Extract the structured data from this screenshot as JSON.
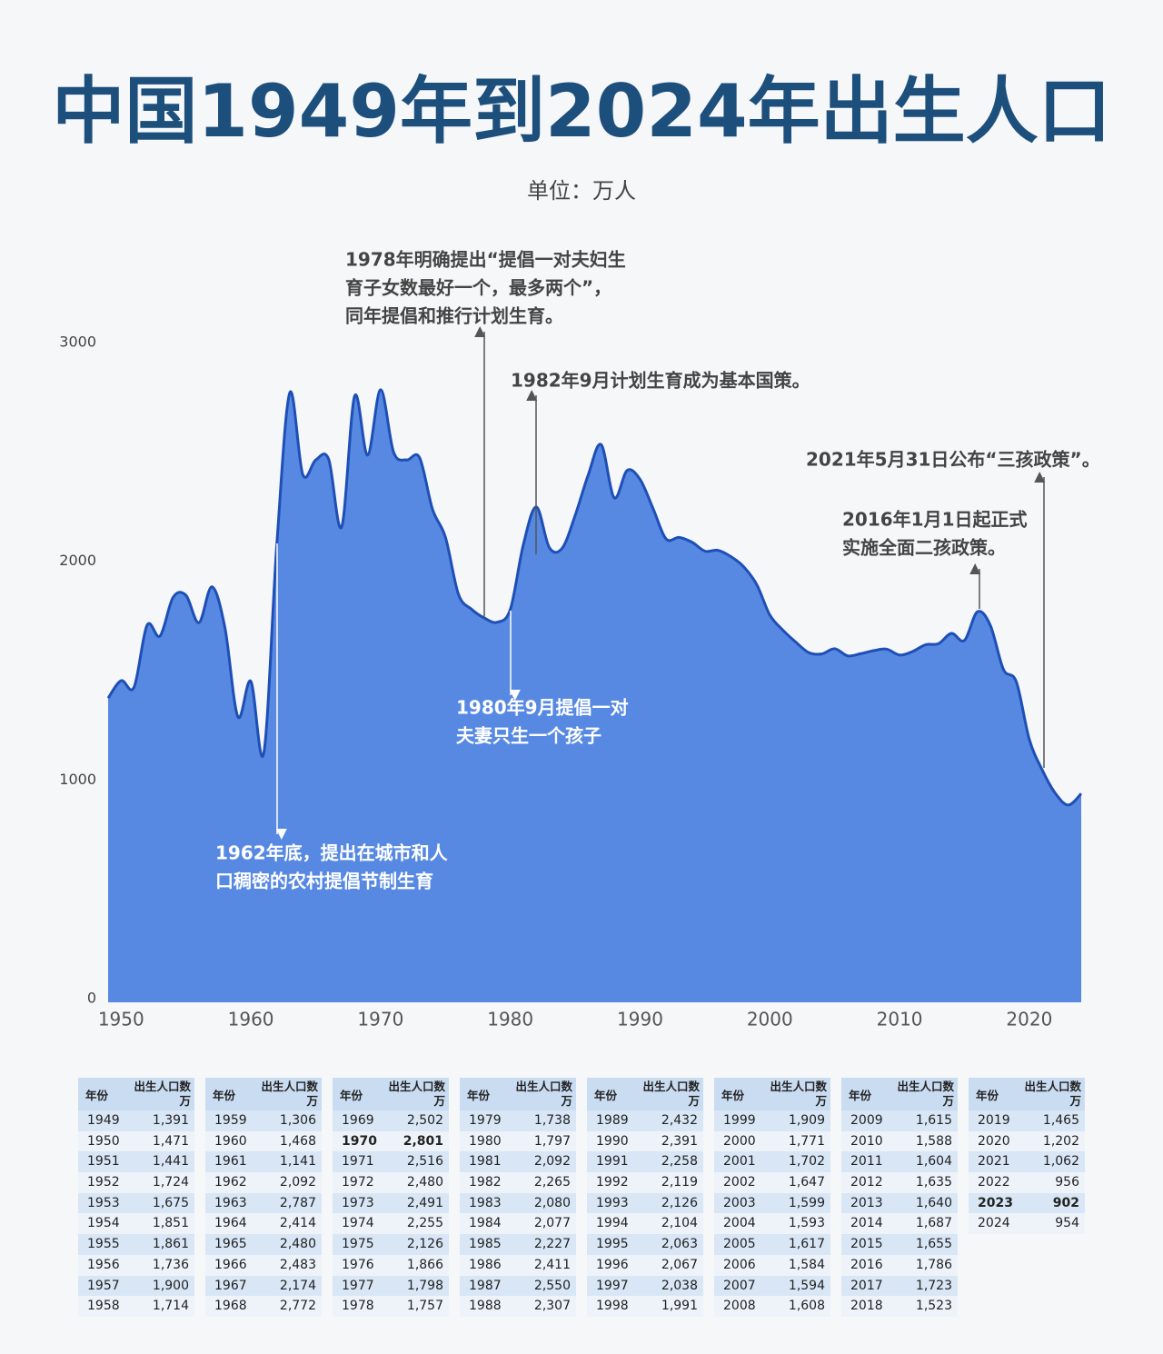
{
  "chart_data": {
    "type": "area",
    "title": "中国1949年到2024年出生人口",
    "subtitle": "单位：万人",
    "x": [
      1949,
      1950,
      1951,
      1952,
      1953,
      1954,
      1955,
      1956,
      1957,
      1958,
      1959,
      1960,
      1961,
      1962,
      1963,
      1964,
      1965,
      1966,
      1967,
      1968,
      1969,
      1970,
      1971,
      1972,
      1973,
      1974,
      1975,
      1976,
      1977,
      1978,
      1979,
      1980,
      1981,
      1982,
      1983,
      1984,
      1985,
      1986,
      1987,
      1988,
      1989,
      1990,
      1991,
      1992,
      1993,
      1994,
      1995,
      1996,
      1997,
      1998,
      1999,
      2000,
      2001,
      2002,
      2003,
      2004,
      2005,
      2006,
      2007,
      2008,
      2009,
      2010,
      2011,
      2012,
      2013,
      2014,
      2015,
      2016,
      2017,
      2018,
      2019,
      2020,
      2021,
      2022,
      2023,
      2024
    ],
    "values": [
      1391,
      1471,
      1441,
      1724,
      1675,
      1851,
      1861,
      1736,
      1900,
      1714,
      1306,
      1468,
      1141,
      2092,
      2787,
      2414,
      2480,
      2483,
      2174,
      2772,
      2502,
      2801,
      2516,
      2480,
      2491,
      2255,
      2126,
      1866,
      1798,
      1757,
      1738,
      1797,
      2092,
      2265,
      2080,
      2077,
      2227,
      2411,
      2550,
      2307,
      2432,
      2391,
      2258,
      2119,
      2126,
      2104,
      2063,
      2067,
      2038,
      1991,
      1909,
      1771,
      1702,
      1647,
      1599,
      1593,
      1617,
      1584,
      1594,
      1608,
      1615,
      1588,
      1604,
      1635,
      1640,
      1687,
      1655,
      1786,
      1723,
      1523,
      1465,
      1202,
      1062,
      956,
      902,
      954
    ],
    "value_labels": [
      "1,391",
      "1,471",
      "1,441",
      "1,724",
      "1,675",
      "1,851",
      "1,861",
      "1,736",
      "1,900",
      "1,714",
      "1,306",
      "1,468",
      "1,141",
      "2,092",
      "2,787",
      "2,414",
      "2,480",
      "2,483",
      "2,174",
      "2,772",
      "2,502",
      "2,801",
      "2,516",
      "2,480",
      "2,491",
      "2,255",
      "2,126",
      "1,866",
      "1,798",
      "1,757",
      "1,738",
      "1,797",
      "2,092",
      "2,265",
      "2,080",
      "2,077",
      "2,227",
      "2,411",
      "2,550",
      "2,307",
      "2,432",
      "2,391",
      "2,258",
      "2,119",
      "2,126",
      "2,104",
      "2,063",
      "2,067",
      "2,038",
      "1,991",
      "1,909",
      "1,771",
      "1,702",
      "1,647",
      "1,599",
      "1,593",
      "1,617",
      "1,584",
      "1,594",
      "1,608",
      "1,615",
      "1,588",
      "1,604",
      "1,635",
      "1,640",
      "1,687",
      "1,655",
      "1,786",
      "1,723",
      "1,523",
      "1,465",
      "1,202",
      "1,062",
      "956",
      "902",
      "954"
    ],
    "color": "#5789e3",
    "line_color": "#1e4fb6",
    "xlim": [
      1949,
      2024
    ],
    "xticks": [
      1950,
      1960,
      1970,
      1980,
      1990,
      2000,
      2010,
      2020
    ],
    "ylim": [
      0,
      3000
    ],
    "yticks": [
      0,
      1000,
      2000,
      3000
    ],
    "annotations": [
      [
        "1978年明确提出“提倡一对夫妇生",
        "育子女数最好一个，最多两个”，",
        "同年提倡和推行计划生育。"
      ],
      [
        "1982年9月计划生育成为基本国策。"
      ],
      [
        "2021年5月31日公布“三孩政策”。"
      ],
      [
        "2016年1月1日起正式",
        "实施全面二孩政策。"
      ],
      [
        "1980年9月提倡一对",
        "夫妻只生一个孩子"
      ],
      [
        "1962年底，提出在城市和人",
        "口稠密的农村提倡节制生育"
      ]
    ],
    "table_headers": [
      "年份",
      "出生人口数万"
    ]
  }
}
